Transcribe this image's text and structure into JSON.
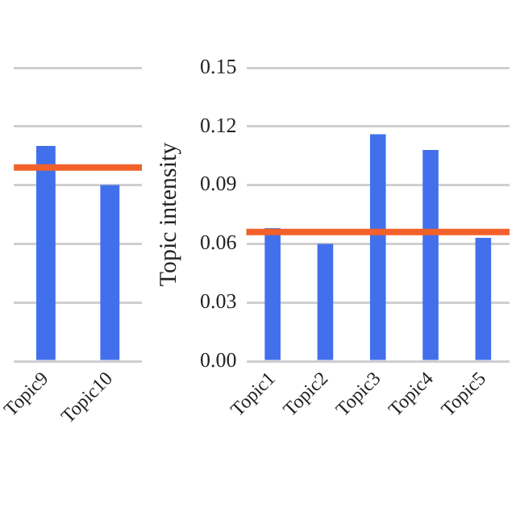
{
  "chart_data": [
    {
      "type": "bar",
      "categories": [
        "Topic9",
        "Topic10"
      ],
      "values": [
        0.11,
        0.09
      ],
      "color": "#4270ec",
      "ylim": [
        0,
        0.15
      ],
      "yticks": [
        0,
        0.03,
        0.06,
        0.09,
        0.12,
        0.15
      ],
      "grid": "y",
      "tick_labels": "x",
      "ref_lines": [
        {
          "axis": "y",
          "value": 0.099,
          "color": "#f2612a"
        }
      ]
    },
    {
      "type": "bar",
      "ylabel": "Topic intensity",
      "categories": [
        "Topic1",
        "Topic2",
        "Topic3",
        "Topic4",
        "Topic5"
      ],
      "values": [
        0.068,
        0.06,
        0.116,
        0.108,
        0.063
      ],
      "color": "#4270ec",
      "ylim": [
        0,
        0.15
      ],
      "yticks": [
        {
          "value": 0,
          "label": "0.00"
        },
        {
          "value": 0.03,
          "label": "0.03"
        },
        {
          "value": 0.06,
          "label": "0.06"
        },
        {
          "value": 0.09,
          "label": "0.09"
        },
        {
          "value": 0.12,
          "label": "0.12"
        },
        {
          "value": 0.15,
          "label": "0.15"
        }
      ],
      "grid": "y",
      "ref_lines": [
        {
          "axis": "y",
          "value": 0.066,
          "color": "#f2612a"
        }
      ]
    }
  ]
}
